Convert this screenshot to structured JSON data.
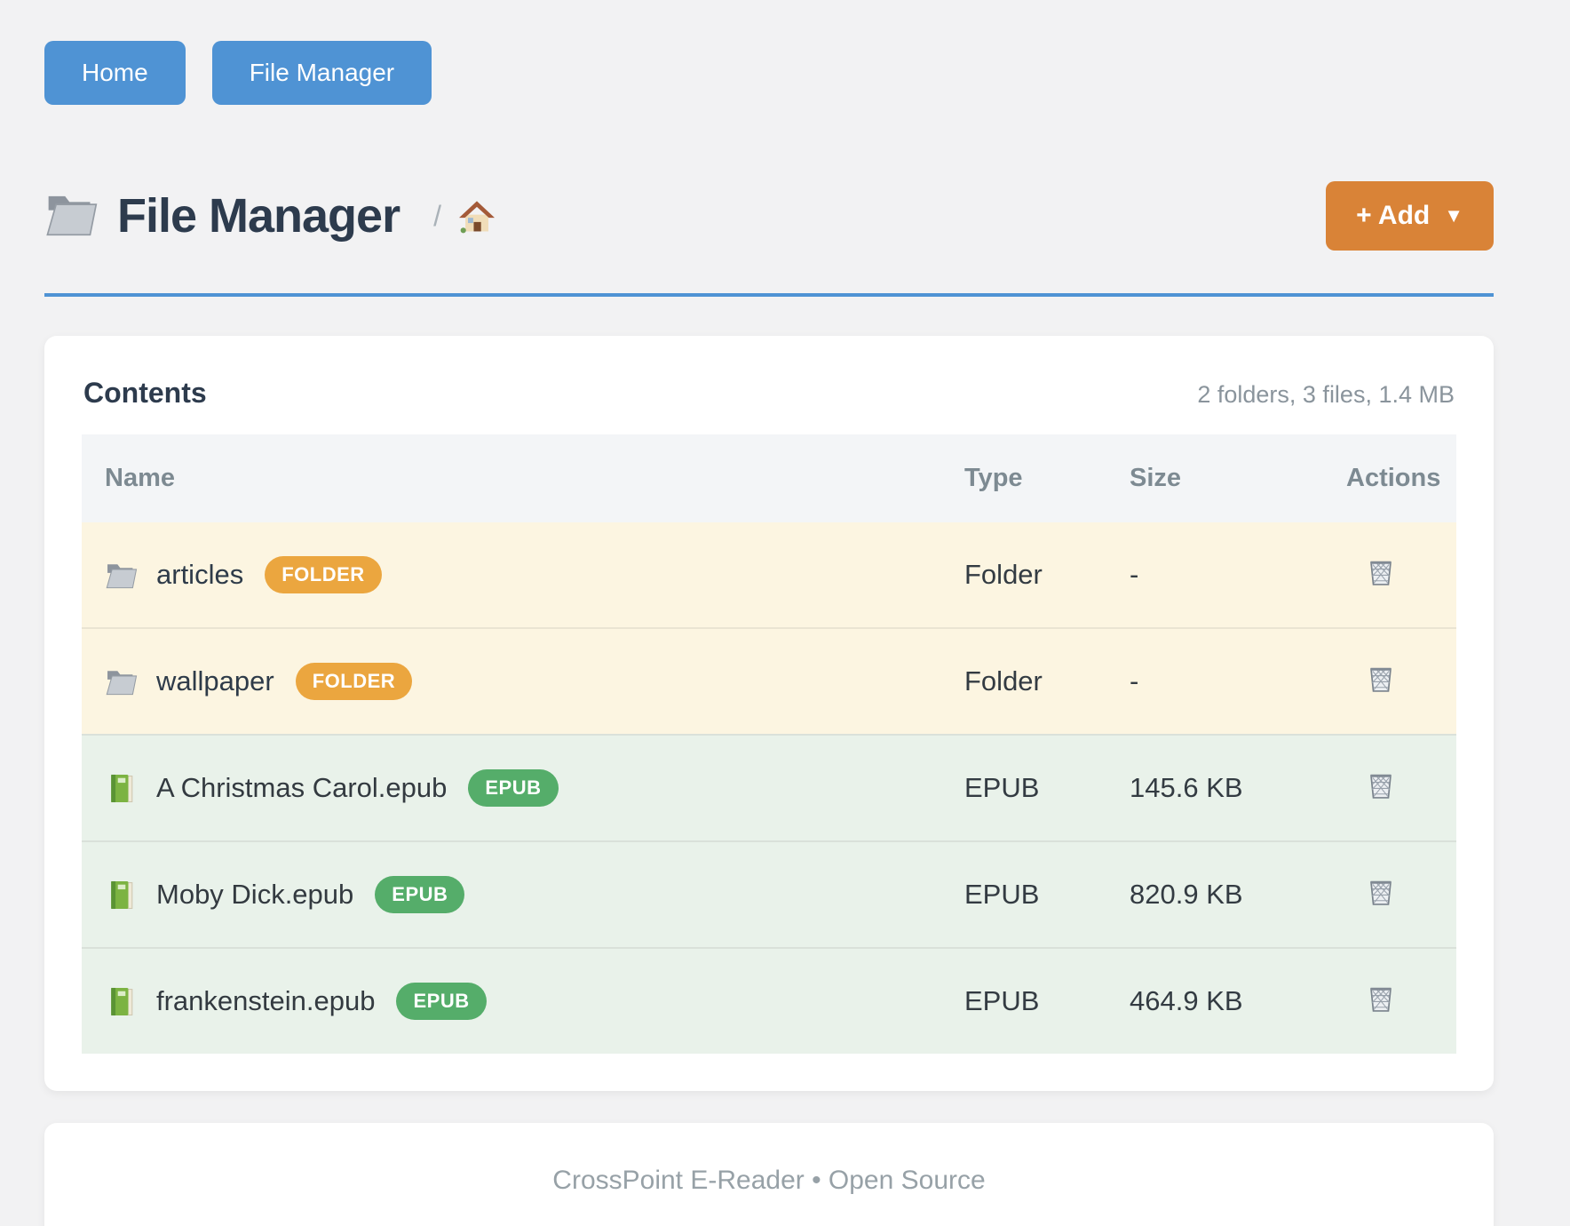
{
  "nav": {
    "home_label": "Home",
    "file_manager_label": "File Manager"
  },
  "header": {
    "title": "File Manager",
    "breadcrumb_separator": "/",
    "breadcrumb_home_icon": "house-icon",
    "title_icon": "open-folder-icon",
    "add_button_label": "+ Add",
    "add_button_caret": "▼"
  },
  "contents": {
    "heading": "Contents",
    "summary": "2 folders, 3 files, 1.4 MB",
    "columns": [
      "Name",
      "Type",
      "Size",
      "Actions"
    ],
    "rows": [
      {
        "name": "articles",
        "kind": "folder",
        "icon": "folder-icon",
        "badge": "FOLDER",
        "type": "Folder",
        "size": "-",
        "action_icon": "trash-icon"
      },
      {
        "name": "wallpaper",
        "kind": "folder",
        "icon": "folder-icon",
        "badge": "FOLDER",
        "type": "Folder",
        "size": "-",
        "action_icon": "trash-icon"
      },
      {
        "name": "A Christmas Carol.epub",
        "kind": "epub",
        "icon": "book-icon",
        "badge": "EPUB",
        "type": "EPUB",
        "size": "145.6 KB",
        "action_icon": "trash-icon"
      },
      {
        "name": "Moby Dick.epub",
        "kind": "epub",
        "icon": "book-icon",
        "badge": "EPUB",
        "type": "EPUB",
        "size": "820.9 KB",
        "action_icon": "trash-icon"
      },
      {
        "name": "frankenstein.epub",
        "kind": "epub",
        "icon": "book-icon",
        "badge": "EPUB",
        "type": "EPUB",
        "size": "464.9 KB",
        "action_icon": "trash-icon"
      }
    ]
  },
  "footer": {
    "text": "CrossPoint E-Reader • Open Source"
  },
  "colors": {
    "primary_blue": "#4f93d4",
    "accent_orange": "#d98337",
    "badge_orange": "#eba63f",
    "badge_green": "#55ad6a",
    "folder_row_bg": "#fcf5e1",
    "epub_row_bg": "#e9f2ea",
    "heading_slate": "#2d3b4d",
    "muted_gray": "#8a949c"
  }
}
